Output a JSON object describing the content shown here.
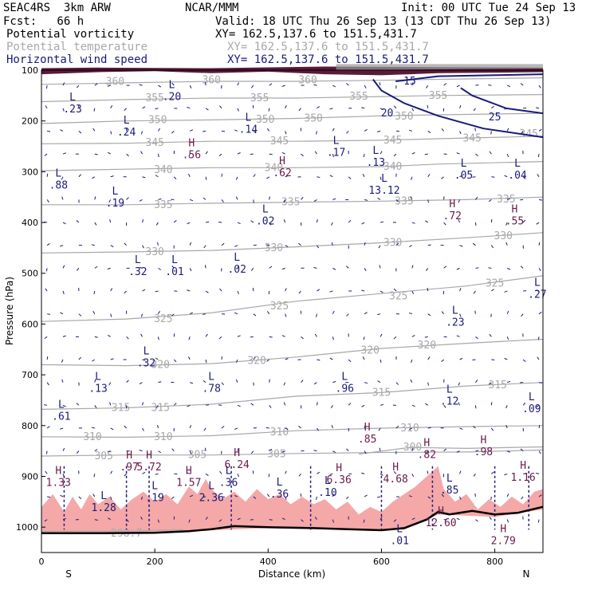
{
  "header": {
    "model": "SEAC4RS  3km ARW",
    "org": "NCAR/MMM",
    "init": "Init: 00 UTC Tue 24 Sep 13",
    "fcst": "Fcst:   66 h",
    "valid": "Valid: 18 UTC Thu 26 Sep 13 (13 CDT Thu 26 Sep 13)"
  },
  "legend": [
    {
      "name": "Potential vorticity",
      "xy": "XY= 162.5,137.6 to 151.5,431.7",
      "color": "#000000"
    },
    {
      "name": "Potential temperature",
      "xy": "XY= 162.5,137.6 to 151.5,431.7",
      "color": "#a8a8a8"
    },
    {
      "name": "Horizontal wind speed",
      "xy": "XY= 162.5,137.6 to 151.5,431.7",
      "color": "#1a1a7a"
    }
  ],
  "chart_data": {
    "type": "cross-section",
    "xlabel": "Distance (km)",
    "ylabel": "Pressure (hPa)",
    "xlim": [
      0,
      885
    ],
    "ylim": [
      1050,
      100
    ],
    "x_ticks": [
      0,
      200,
      400,
      600,
      800
    ],
    "y_ticks": [
      100,
      200,
      300,
      400,
      500,
      600,
      700,
      800,
      900,
      1000
    ],
    "end_labels": {
      "left": "S",
      "right": "N"
    },
    "terrain": [
      [
        0,
        1012
      ],
      [
        100,
        1012
      ],
      [
        200,
        1011
      ],
      [
        260,
        1008
      ],
      [
        300,
        1004
      ],
      [
        340,
        998
      ],
      [
        400,
        1000
      ],
      [
        480,
        1002
      ],
      [
        540,
        1004
      ],
      [
        600,
        1006
      ],
      [
        640,
        1002
      ],
      [
        680,
        985
      ],
      [
        700,
        970
      ],
      [
        720,
        975
      ],
      [
        760,
        968
      ],
      [
        800,
        975
      ],
      [
        840,
        972
      ],
      [
        885,
        960
      ]
    ],
    "colors": {
      "terrain": "#000000",
      "pv_shading": "#f4a8a8",
      "theta": "#a8a8a8",
      "wind": "#1a1a7a",
      "pv_label": "#6a1a4a"
    },
    "theta_contours": [
      {
        "label": "360",
        "p": [
          [
            0,
            128
          ],
          [
            150,
            125
          ],
          [
            300,
            122
          ],
          [
            450,
            122
          ],
          [
            600,
            120
          ],
          [
            700,
            118
          ],
          [
            885,
            115
          ]
        ],
        "labels_at": [
          [
            130,
            123
          ],
          [
            300,
            120
          ],
          [
            470,
            120
          ]
        ]
      },
      {
        "label": "355",
        "p": [
          [
            0,
            162
          ],
          [
            150,
            158
          ],
          [
            300,
            155
          ],
          [
            450,
            155
          ],
          [
            600,
            152
          ],
          [
            700,
            150
          ],
          [
            885,
            148
          ]
        ],
        "labels_at": [
          [
            200,
            155
          ],
          [
            385,
            155
          ],
          [
            560,
            152
          ],
          [
            700,
            150
          ]
        ]
      },
      {
        "label": "350",
        "p": [
          [
            0,
            205
          ],
          [
            150,
            200
          ],
          [
            300,
            198
          ],
          [
            450,
            195
          ],
          [
            600,
            190
          ],
          [
            700,
            188
          ],
          [
            885,
            185
          ]
        ],
        "labels_at": [
          [
            205,
            198
          ],
          [
            395,
            197
          ],
          [
            480,
            195
          ],
          [
            640,
            191
          ]
        ]
      },
      {
        "label": "345",
        "p": [
          [
            0,
            245
          ],
          [
            150,
            244
          ],
          [
            300,
            240
          ],
          [
            450,
            240
          ],
          [
            600,
            238
          ],
          [
            700,
            235
          ],
          [
            885,
            230
          ]
        ],
        "labels_at": [
          [
            200,
            243
          ],
          [
            420,
            240
          ],
          [
            620,
            238
          ],
          [
            760,
            234
          ],
          [
            860,
            226
          ]
        ]
      },
      {
        "label": "340",
        "p": [
          [
            0,
            298
          ],
          [
            150,
            295
          ],
          [
            300,
            292
          ],
          [
            450,
            292
          ],
          [
            600,
            290
          ],
          [
            700,
            285
          ],
          [
            885,
            280
          ]
        ],
        "labels_at": [
          [
            215,
            296
          ],
          [
            410,
            292
          ],
          [
            620,
            290
          ]
        ]
      },
      {
        "label": "335",
        "p": [
          [
            0,
            365
          ],
          [
            150,
            365
          ],
          [
            300,
            362
          ],
          [
            450,
            360
          ],
          [
            600,
            358
          ],
          [
            750,
            355
          ],
          [
            885,
            350
          ]
        ],
        "labels_at": [
          [
            215,
            365
          ],
          [
            440,
            360
          ],
          [
            640,
            358
          ],
          [
            820,
            354
          ]
        ]
      },
      {
        "label": "330",
        "p": [
          [
            0,
            460
          ],
          [
            150,
            458
          ],
          [
            300,
            455
          ],
          [
            450,
            448
          ],
          [
            600,
            440
          ],
          [
            750,
            430
          ],
          [
            885,
            420
          ]
        ],
        "labels_at": [
          [
            200,
            458
          ],
          [
            410,
            450
          ],
          [
            620,
            440
          ],
          [
            815,
            427
          ]
        ]
      },
      {
        "label": "325",
        "p": [
          [
            0,
            595
          ],
          [
            150,
            590
          ],
          [
            300,
            578
          ],
          [
            450,
            555
          ],
          [
            600,
            540
          ],
          [
            750,
            525
          ],
          [
            885,
            505
          ]
        ],
        "labels_at": [
          [
            215,
            590
          ],
          [
            420,
            565
          ],
          [
            630,
            545
          ],
          [
            800,
            520
          ]
        ]
      },
      {
        "label": "320",
        "p": [
          [
            0,
            680
          ],
          [
            150,
            682
          ],
          [
            300,
            678
          ],
          [
            450,
            665
          ],
          [
            600,
            648
          ],
          [
            750,
            638
          ],
          [
            885,
            630
          ]
        ],
        "labels_at": [
          [
            210,
            680
          ],
          [
            380,
            672
          ],
          [
            580,
            652
          ],
          [
            680,
            642
          ]
        ]
      },
      {
        "label": "315",
        "p": [
          [
            0,
            768
          ],
          [
            150,
            765
          ],
          [
            300,
            758
          ],
          [
            450,
            742
          ],
          [
            600,
            735
          ],
          [
            750,
            722
          ],
          [
            885,
            715
          ]
        ],
        "labels_at": [
          [
            140,
            765
          ],
          [
            210,
            765
          ],
          [
            600,
            735
          ],
          [
            805,
            720
          ]
        ]
      },
      {
        "label": "310",
        "p": [
          [
            0,
            822
          ],
          [
            150,
            823
          ],
          [
            300,
            820
          ],
          [
            450,
            810
          ],
          [
            600,
            805
          ],
          [
            750,
            802
          ],
          [
            885,
            800
          ]
        ],
        "labels_at": [
          [
            90,
            822
          ],
          [
            215,
            822
          ],
          [
            420,
            813
          ],
          [
            650,
            805
          ]
        ]
      },
      {
        "label": "305",
        "p": [
          [
            0,
            860
          ],
          [
            150,
            858
          ],
          [
            300,
            858
          ],
          [
            450,
            855
          ],
          [
            600,
            853
          ],
          [
            750,
            852
          ],
          [
            885,
            848
          ]
        ],
        "labels_at": [
          [
            110,
            860
          ],
          [
            275,
            858
          ],
          [
            415,
            856
          ]
        ]
      },
      {
        "label": "300",
        "p": [
          [
            560,
            856
          ],
          [
            650,
            843
          ],
          [
            750,
            845
          ],
          [
            885,
            842
          ]
        ],
        "labels_at": [
          [
            655,
            843
          ]
        ]
      },
      {
        "label": "298.7",
        "p": [
          [
            0,
            1008
          ],
          [
            150,
            1008
          ],
          [
            250,
            1005
          ]
        ],
        "labels_at": [
          [
            150,
            1012
          ]
        ]
      }
    ],
    "wind_contours": [
      {
        "label": "20",
        "p": [
          [
            585,
            118
          ],
          [
            600,
            140
          ],
          [
            640,
            165
          ],
          [
            700,
            190
          ],
          [
            780,
            215
          ],
          [
            885,
            232
          ]
        ],
        "labels_at": [
          [
            610,
            185
          ]
        ]
      },
      {
        "label": "25",
        "p": [
          [
            740,
            135
          ],
          [
            760,
            150
          ],
          [
            820,
            175
          ],
          [
            885,
            185
          ]
        ],
        "labels_at": [
          [
            800,
            193
          ]
        ]
      },
      {
        "label": "15",
        "p": [
          [
            625,
            122
          ],
          [
            700,
            112
          ],
          [
            885,
            108
          ]
        ],
        "labels_at": [
          [
            650,
            122
          ]
        ]
      }
    ],
    "extrema": [
      {
        "t": "L",
        "v": ".23",
        "x": 55,
        "p": 160
      },
      {
        "t": "L",
        "v": ".20",
        "x": 230,
        "p": 135
      },
      {
        "t": "L",
        "v": ".24",
        "x": 150,
        "p": 205
      },
      {
        "t": "L",
        "v": ".14",
        "x": 365,
        "p": 200
      },
      {
        "t": "H",
        "v": ".56",
        "x": 265,
        "p": 250
      },
      {
        "t": "L",
        "v": ".17",
        "x": 520,
        "p": 245
      },
      {
        "t": "L",
        "v": ".13",
        "x": 590,
        "p": 265
      },
      {
        "t": "H",
        "v": ".62",
        "x": 425,
        "p": 285
      },
      {
        "t": "L",
        "v": ".05",
        "x": 745,
        "p": 290
      },
      {
        "t": "L",
        "v": ".04",
        "x": 840,
        "p": 290
      },
      {
        "t": "L",
        "v": ".88",
        "x": 30,
        "p": 310
      },
      {
        "t": "L",
        "v": "13.12",
        "x": 605,
        "p": 320
      },
      {
        "t": "L",
        "v": ".19",
        "x": 130,
        "p": 345
      },
      {
        "t": "H",
        "v": ".72",
        "x": 725,
        "p": 370
      },
      {
        "t": "L",
        "v": ".02",
        "x": 395,
        "p": 380
      },
      {
        "t": "H",
        "v": ".55",
        "x": 835,
        "p": 380
      },
      {
        "t": "L",
        "v": ".32",
        "x": 170,
        "p": 480
      },
      {
        "t": "L",
        "v": ".01",
        "x": 235,
        "p": 480
      },
      {
        "t": "L",
        "v": ".02",
        "x": 345,
        "p": 475
      },
      {
        "t": "L",
        "v": ".27",
        "x": 875,
        "p": 525
      },
      {
        "t": "L",
        "v": ".23",
        "x": 730,
        "p": 580
      },
      {
        "t": "L",
        "v": ".32",
        "x": 185,
        "p": 660
      },
      {
        "t": "L",
        "v": ".13",
        "x": 100,
        "p": 710
      },
      {
        "t": "L",
        "v": ".78",
        "x": 300,
        "p": 710
      },
      {
        "t": "L",
        "v": ".96",
        "x": 535,
        "p": 710
      },
      {
        "t": "L",
        "v": ".12",
        "x": 720,
        "p": 735
      },
      {
        "t": "L",
        "v": ".09",
        "x": 865,
        "p": 750
      },
      {
        "t": "L",
        "v": ".61",
        "x": 35,
        "p": 765
      },
      {
        "t": "H",
        "v": ".85",
        "x": 575,
        "p": 810
      },
      {
        "t": "H",
        "v": ".82",
        "x": 680,
        "p": 840
      },
      {
        "t": "H",
        "v": ".98",
        "x": 780,
        "p": 835
      },
      {
        "t": "H",
        "v": ".97",
        "x": 155,
        "p": 865
      },
      {
        "t": "H",
        "v": "5.72",
        "x": 190,
        "p": 865
      },
      {
        "t": "H",
        "v": "6.24",
        "x": 345,
        "p": 860
      },
      {
        "t": "H",
        "v": "1.33",
        "x": 30,
        "p": 895
      },
      {
        "t": "H",
        "v": "1.57",
        "x": 260,
        "p": 895
      },
      {
        "t": "L",
        "v": ".36",
        "x": 330,
        "p": 895
      },
      {
        "t": "H",
        "v": "6.36",
        "x": 525,
        "p": 890
      },
      {
        "t": "H",
        "v": "4.68",
        "x": 625,
        "p": 888
      },
      {
        "t": "H",
        "v": "1.16",
        "x": 850,
        "p": 885
      },
      {
        "t": "L",
        "v": ".36",
        "x": 420,
        "p": 918
      },
      {
        "t": "L",
        "v": ".19",
        "x": 200,
        "p": 925
      },
      {
        "t": "L",
        "v": "2.36",
        "x": 300,
        "p": 925
      },
      {
        "t": "L",
        "v": ".10",
        "x": 505,
        "p": 915
      },
      {
        "t": "L",
        "v": ".85",
        "x": 720,
        "p": 910
      },
      {
        "t": "L",
        "v": "1.28",
        "x": 110,
        "p": 945
      },
      {
        "t": "H",
        "v": "12.60",
        "x": 705,
        "p": 975
      },
      {
        "t": "L",
        "v": ".01",
        "x": 632,
        "p": 1010
      },
      {
        "t": "H",
        "v": "2.79",
        "x": 815,
        "p": 1010
      }
    ]
  }
}
